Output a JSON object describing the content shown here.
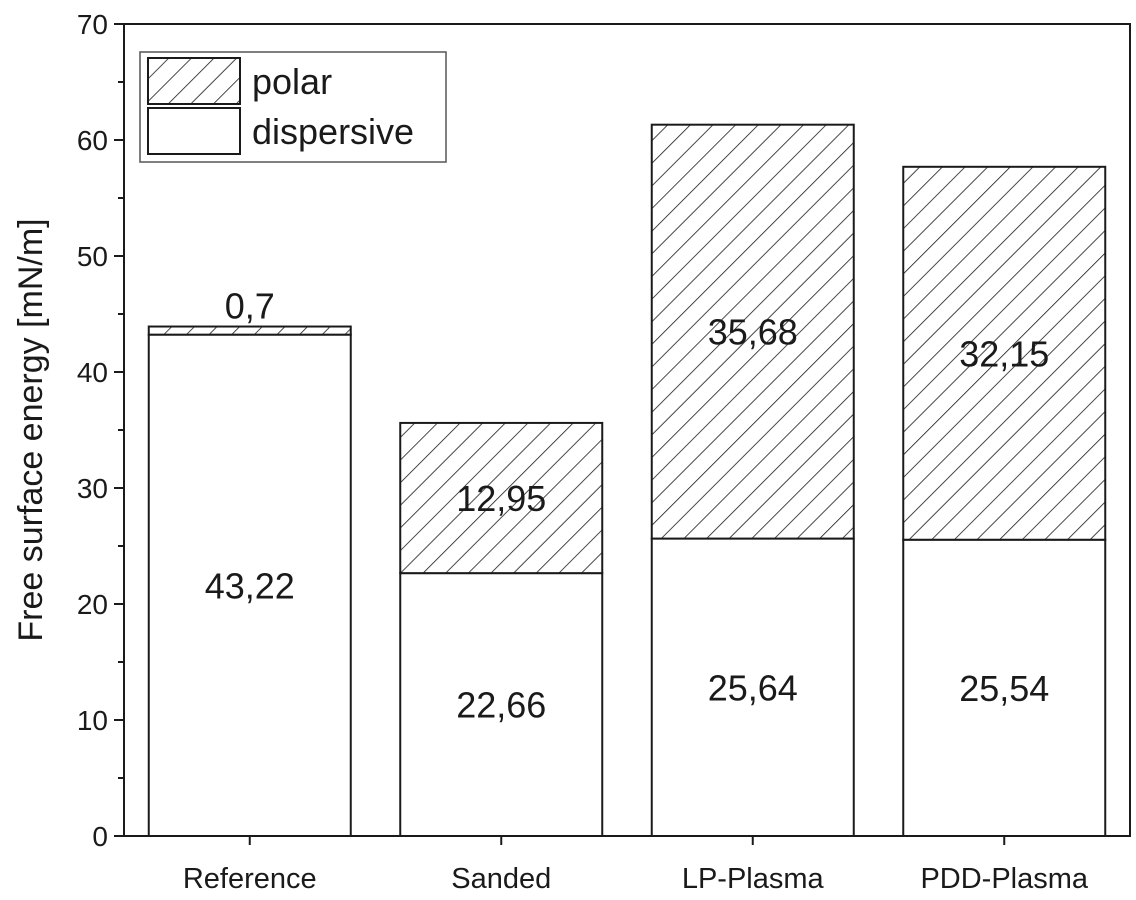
{
  "chart_data": {
    "type": "bar",
    "stacked": true,
    "categories": [
      "Reference",
      "Sanded",
      "LP-Plasma",
      "PDD-Plasma"
    ],
    "series": [
      {
        "name": "dispersive",
        "values": [
          43.22,
          22.66,
          25.64,
          25.54
        ],
        "labels": [
          "43,22",
          "22,66",
          "25,64",
          "25,54"
        ],
        "fill": "#ffffff",
        "pattern": "none"
      },
      {
        "name": "polar",
        "values": [
          0.7,
          12.95,
          35.68,
          32.15
        ],
        "labels": [
          "0,7",
          "12,95",
          "35,68",
          "32,15"
        ],
        "fill": "#ffffff",
        "pattern": "diagonal-hatch"
      }
    ],
    "xlabel": "",
    "ylabel": "Free surface energy [mN/m]",
    "ylim": [
      0,
      70
    ],
    "yticks": [
      0,
      10,
      20,
      30,
      40,
      50,
      60,
      70
    ],
    "grid": false,
    "legend": {
      "position": "top-left",
      "entries": [
        "polar",
        "dispersive"
      ]
    },
    "colors": {
      "stroke": "#1a1a1a",
      "background": "#ffffff"
    }
  }
}
